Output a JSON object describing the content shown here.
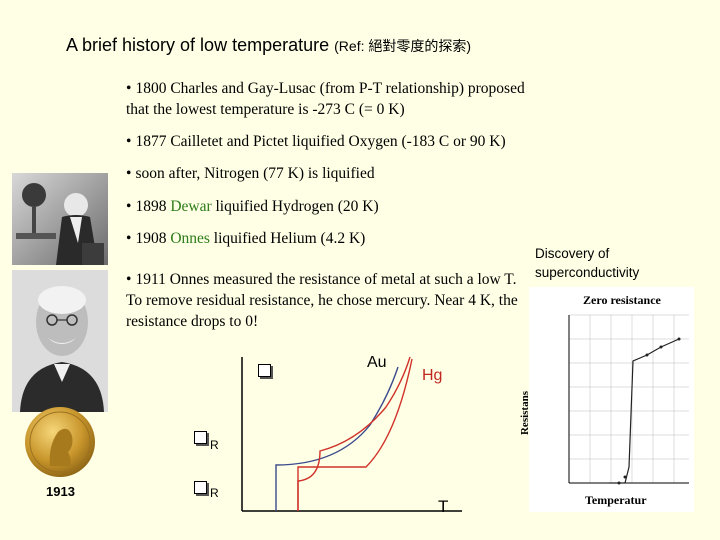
{
  "title": {
    "main": "A brief history of low temperature",
    "ref": "(Ref: 絕對零度的探索)"
  },
  "bullets": {
    "b1": {
      "dot": "•",
      "text": "1800 Charles and Gay-Lusac (from P-T relationship) proposed that the lowest temperature is -273 C (= 0 K)"
    },
    "b2": {
      "dot": "•",
      "text": "1877 Cailletet and Pictet liquified Oxygen (-183 C or 90 K)"
    },
    "b3": {
      "dot": "•",
      "text": "soon after, Nitrogen (77 K) is liquified"
    },
    "b4": {
      "dot": "•",
      "pre": "1898 ",
      "highlight": "Dewar",
      "post": " liquified Hydrogen (20 K)"
    },
    "b5": {
      "dot": "•",
      "pre": "1908 ",
      "highlight": "Onnes",
      "post": " liquified Helium (4.2 K)"
    },
    "b6": {
      "dot": "•",
      "text": "1911 Onnes measured the resistance of metal at such a low T. To remove residual resistance, he chose mercury. Near 4 K, the resistance drops to 0!"
    }
  },
  "caption": "Discovery of superconductivity",
  "medal_year": "1913",
  "diagram": {
    "rho_symbol": "r",
    "au_label": "Au",
    "hg_label": "Hg",
    "r_label_1": "R",
    "r_label_2": "R",
    "t_label": "T"
  },
  "inset": {
    "title": "Zero resistance",
    "ylabel": "Resistans",
    "xlabel": "Temperatur"
  },
  "colors": {
    "background": "#ffffe6",
    "highlight_green": "#2e7d1a",
    "au_curve": "#3b4a8c",
    "hg_curve": "#d0322a"
  }
}
